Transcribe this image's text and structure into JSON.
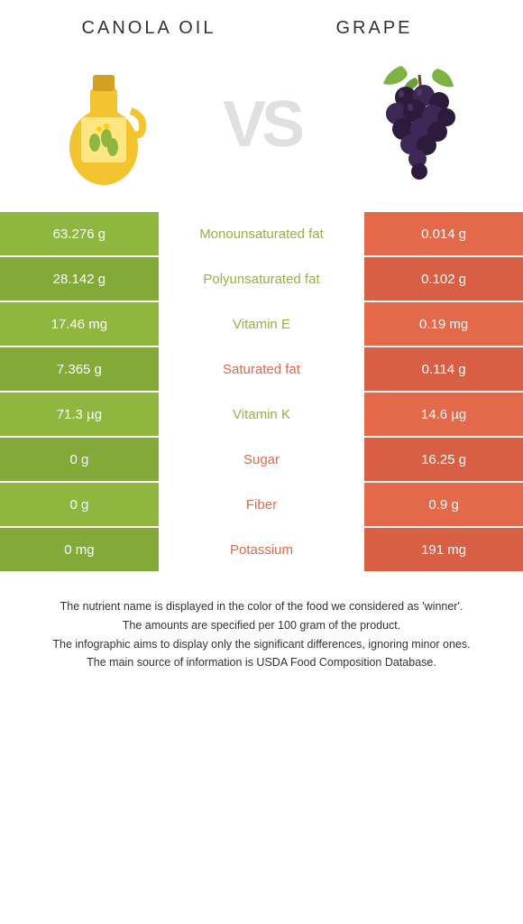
{
  "header": {
    "left_title": "CANOLA OIL",
    "right_title": "GRAPE"
  },
  "vs_label": "VS",
  "colors": {
    "left": "#8fb63f",
    "right": "#e4684a",
    "left_alt": "#83a939",
    "right_alt": "#d85f43",
    "vs_text": "#e0e0e0",
    "nutrient_left_winner": "#8fb63f",
    "nutrient_right_winner": "#e4684a"
  },
  "rows": [
    {
      "left": "63.276 g",
      "mid": "Monounsaturated fat",
      "right": "0.014 g",
      "winner": "left"
    },
    {
      "left": "28.142 g",
      "mid": "Polyunsaturated fat",
      "right": "0.102 g",
      "winner": "left"
    },
    {
      "left": "17.46 mg",
      "mid": "Vitamin E",
      "right": "0.19 mg",
      "winner": "left"
    },
    {
      "left": "7.365 g",
      "mid": "Saturated fat",
      "right": "0.114 g",
      "winner": "right"
    },
    {
      "left": "71.3 µg",
      "mid": "Vitamin K",
      "right": "14.6 µg",
      "winner": "left"
    },
    {
      "left": "0 g",
      "mid": "Sugar",
      "right": "16.25 g",
      "winner": "right"
    },
    {
      "left": "0 g",
      "mid": "Fiber",
      "right": "0.9 g",
      "winner": "right"
    },
    {
      "left": "0 mg",
      "mid": "Potassium",
      "right": "191 mg",
      "winner": "right"
    }
  ],
  "footnotes": [
    "The nutrient name is displayed in the color of the food we considered as 'winner'.",
    "The amounts are specified per 100 gram of the product.",
    "The infographic aims to display only the significant differences, ignoring minor ones.",
    "The main source of information is USDA Food Composition Database."
  ]
}
